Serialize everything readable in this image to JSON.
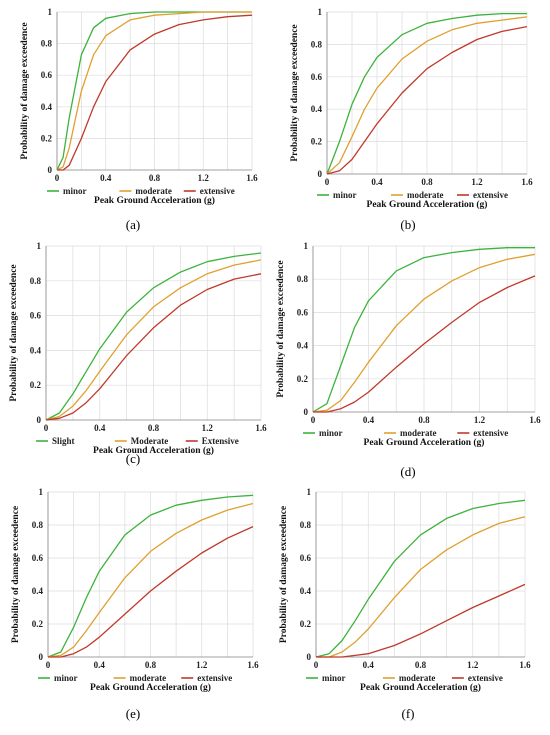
{
  "figure": {
    "colors": {
      "minor": "#3cb33c",
      "moderate": "#e0a030",
      "extensive": "#c0392b"
    }
  },
  "chart_data": [
    {
      "type": "line",
      "panel_label": "(a)",
      "xlabel": "Peak Ground Acceleration (g)",
      "ylabel": "Probability of damage exceedence",
      "xlim": [
        0,
        1.6
      ],
      "ylim": [
        0,
        1
      ],
      "x_ticks": [
        "0",
        "0.4",
        "0.8",
        "1.2",
        "1.6"
      ],
      "y_ticks": [
        "0",
        "0.2",
        "0.4",
        "0.6",
        "0.8",
        "1"
      ],
      "grid": true,
      "legend_position": "bottom",
      "x": [
        0,
        0.05,
        0.1,
        0.2,
        0.3,
        0.4,
        0.6,
        0.8,
        1.0,
        1.2,
        1.4,
        1.6
      ],
      "series": [
        {
          "name": "minor",
          "color": "#3cb33c",
          "values": [
            0,
            0.08,
            0.33,
            0.73,
            0.9,
            0.96,
            0.99,
            1.0,
            1.0,
            1.0,
            1.0,
            1.0
          ]
        },
        {
          "name": "moderate",
          "color": "#e0a030",
          "values": [
            0,
            0.02,
            0.14,
            0.5,
            0.73,
            0.85,
            0.95,
            0.98,
            0.99,
            1.0,
            1.0,
            1.0
          ]
        },
        {
          "name": "extensive",
          "color": "#c0392b",
          "values": [
            0,
            0.0,
            0.03,
            0.2,
            0.4,
            0.56,
            0.76,
            0.86,
            0.92,
            0.95,
            0.97,
            0.98
          ]
        }
      ]
    },
    {
      "type": "line",
      "panel_label": "(b)",
      "xlabel": "Peak Ground Acceleration (g)",
      "ylabel": "Probability of damage exceedence",
      "xlim": [
        0,
        1.6
      ],
      "ylim": [
        0,
        1
      ],
      "x_ticks": [
        "0",
        "0.4",
        "0.8",
        "1.2",
        "1.6"
      ],
      "y_ticks": [
        "0",
        "0.2",
        "0.4",
        "0.6",
        "0.8",
        "1"
      ],
      "grid": true,
      "legend_position": "bottom",
      "x": [
        0,
        0.1,
        0.2,
        0.3,
        0.4,
        0.6,
        0.8,
        1.0,
        1.2,
        1.4,
        1.6
      ],
      "series": [
        {
          "name": "minor",
          "color": "#3cb33c",
          "values": [
            0,
            0.2,
            0.43,
            0.6,
            0.72,
            0.86,
            0.93,
            0.96,
            0.98,
            0.99,
            0.99
          ]
        },
        {
          "name": "moderate",
          "color": "#e0a030",
          "values": [
            0,
            0.07,
            0.23,
            0.4,
            0.53,
            0.71,
            0.82,
            0.89,
            0.93,
            0.95,
            0.97
          ]
        },
        {
          "name": "extensive",
          "color": "#c0392b",
          "values": [
            0,
            0.02,
            0.09,
            0.2,
            0.31,
            0.5,
            0.65,
            0.75,
            0.83,
            0.88,
            0.91
          ]
        }
      ]
    },
    {
      "type": "line",
      "panel_label": "(c)",
      "xlabel": "Peak Ground Acceleration (g)",
      "ylabel": "Probability of damage exceedence",
      "xlim": [
        0,
        1.6
      ],
      "ylim": [
        0,
        1
      ],
      "x_ticks": [
        "0",
        "0.4",
        "0.8",
        "1.2",
        "1.6"
      ],
      "y_ticks": [
        "0",
        "0.2",
        "0.4",
        "0.6",
        "0.8",
        "1"
      ],
      "grid": true,
      "legend_position": "bottom",
      "x": [
        0,
        0.1,
        0.2,
        0.3,
        0.4,
        0.6,
        0.8,
        1.0,
        1.2,
        1.4,
        1.6
      ],
      "series": [
        {
          "name": "Slight",
          "color": "#3cb33c",
          "values": [
            0,
            0.04,
            0.15,
            0.28,
            0.41,
            0.62,
            0.76,
            0.85,
            0.91,
            0.94,
            0.96
          ]
        },
        {
          "name": "Moderate",
          "color": "#e0a030",
          "values": [
            0,
            0.02,
            0.08,
            0.17,
            0.28,
            0.49,
            0.65,
            0.76,
            0.84,
            0.89,
            0.92
          ]
        },
        {
          "name": "Extensive",
          "color": "#c0392b",
          "values": [
            0,
            0.01,
            0.04,
            0.1,
            0.18,
            0.37,
            0.53,
            0.66,
            0.75,
            0.81,
            0.84
          ]
        }
      ]
    },
    {
      "type": "line",
      "panel_label": "(d)",
      "xlabel": "Peak Ground Acceleration (g)",
      "ylabel": "Probability of damage exceedence",
      "xlim": [
        0,
        1.6
      ],
      "ylim": [
        0,
        1
      ],
      "x_ticks": [
        "0",
        "0.4",
        "0.8",
        "1.2",
        "1.6"
      ],
      "y_ticks": [
        "0",
        "0.2",
        "0.4",
        "0.6",
        "0.8",
        "1"
      ],
      "grid": true,
      "legend_position": "bottom",
      "x": [
        0,
        0.1,
        0.2,
        0.3,
        0.4,
        0.6,
        0.8,
        1.0,
        1.2,
        1.4,
        1.6
      ],
      "series": [
        {
          "name": "minor",
          "color": "#3cb33c",
          "values": [
            0,
            0.05,
            0.28,
            0.51,
            0.67,
            0.85,
            0.93,
            0.96,
            0.98,
            0.99,
            0.99
          ]
        },
        {
          "name": "moderate",
          "color": "#e0a030",
          "values": [
            0,
            0.01,
            0.07,
            0.18,
            0.3,
            0.52,
            0.68,
            0.79,
            0.87,
            0.92,
            0.95
          ]
        },
        {
          "name": "extensive",
          "color": "#c0392b",
          "values": [
            0,
            0.0,
            0.02,
            0.06,
            0.12,
            0.27,
            0.41,
            0.54,
            0.66,
            0.75,
            0.82
          ]
        }
      ]
    },
    {
      "type": "line",
      "panel_label": "(e)",
      "xlabel": "Peak Ground Acceleration (g)",
      "ylabel": "Probability of damage exceedence",
      "xlim": [
        0,
        1.6
      ],
      "ylim": [
        0,
        1
      ],
      "x_ticks": [
        "0",
        "0.4",
        "0.8",
        "1.2",
        "1.6"
      ],
      "y_ticks": [
        "0",
        "0.2",
        "0.4",
        "0.6",
        "0.8",
        "1"
      ],
      "grid": true,
      "legend_position": "bottom",
      "x": [
        0,
        0.1,
        0.2,
        0.3,
        0.4,
        0.6,
        0.8,
        1.0,
        1.2,
        1.4,
        1.6
      ],
      "series": [
        {
          "name": "minor",
          "color": "#3cb33c",
          "values": [
            0,
            0.03,
            0.18,
            0.36,
            0.52,
            0.74,
            0.86,
            0.92,
            0.95,
            0.97,
            0.98
          ]
        },
        {
          "name": "moderate",
          "color": "#e0a030",
          "values": [
            0,
            0.01,
            0.06,
            0.16,
            0.27,
            0.48,
            0.64,
            0.75,
            0.83,
            0.89,
            0.93
          ]
        },
        {
          "name": "extensive",
          "color": "#c0392b",
          "values": [
            0,
            0.0,
            0.02,
            0.06,
            0.12,
            0.26,
            0.4,
            0.52,
            0.63,
            0.72,
            0.79
          ]
        }
      ]
    },
    {
      "type": "line",
      "panel_label": "(f)",
      "xlabel": "Peak Ground Acceleration (g)",
      "ylabel": "Probability of damage exceedence",
      "xlim": [
        0,
        1.6
      ],
      "ylim": [
        0,
        1
      ],
      "x_ticks": [
        "0",
        "0.4",
        "0.8",
        "1.2",
        "1.6"
      ],
      "y_ticks": [
        "0",
        "0.2",
        "0.4",
        "0.6",
        "0.8",
        "1"
      ],
      "grid": true,
      "legend_position": "bottom",
      "x": [
        0,
        0.1,
        0.2,
        0.3,
        0.4,
        0.6,
        0.8,
        1.0,
        1.2,
        1.4,
        1.6
      ],
      "series": [
        {
          "name": "minor",
          "color": "#3cb33c",
          "values": [
            0,
            0.02,
            0.1,
            0.22,
            0.35,
            0.58,
            0.74,
            0.84,
            0.9,
            0.93,
            0.95
          ]
        },
        {
          "name": "moderate",
          "color": "#e0a030",
          "values": [
            0,
            0.0,
            0.03,
            0.09,
            0.17,
            0.36,
            0.53,
            0.65,
            0.74,
            0.81,
            0.85
          ]
        },
        {
          "name": "extensive",
          "color": "#c0392b",
          "values": [
            0,
            0.0,
            0.0,
            0.01,
            0.02,
            0.07,
            0.14,
            0.22,
            0.3,
            0.37,
            0.44
          ]
        }
      ]
    }
  ]
}
